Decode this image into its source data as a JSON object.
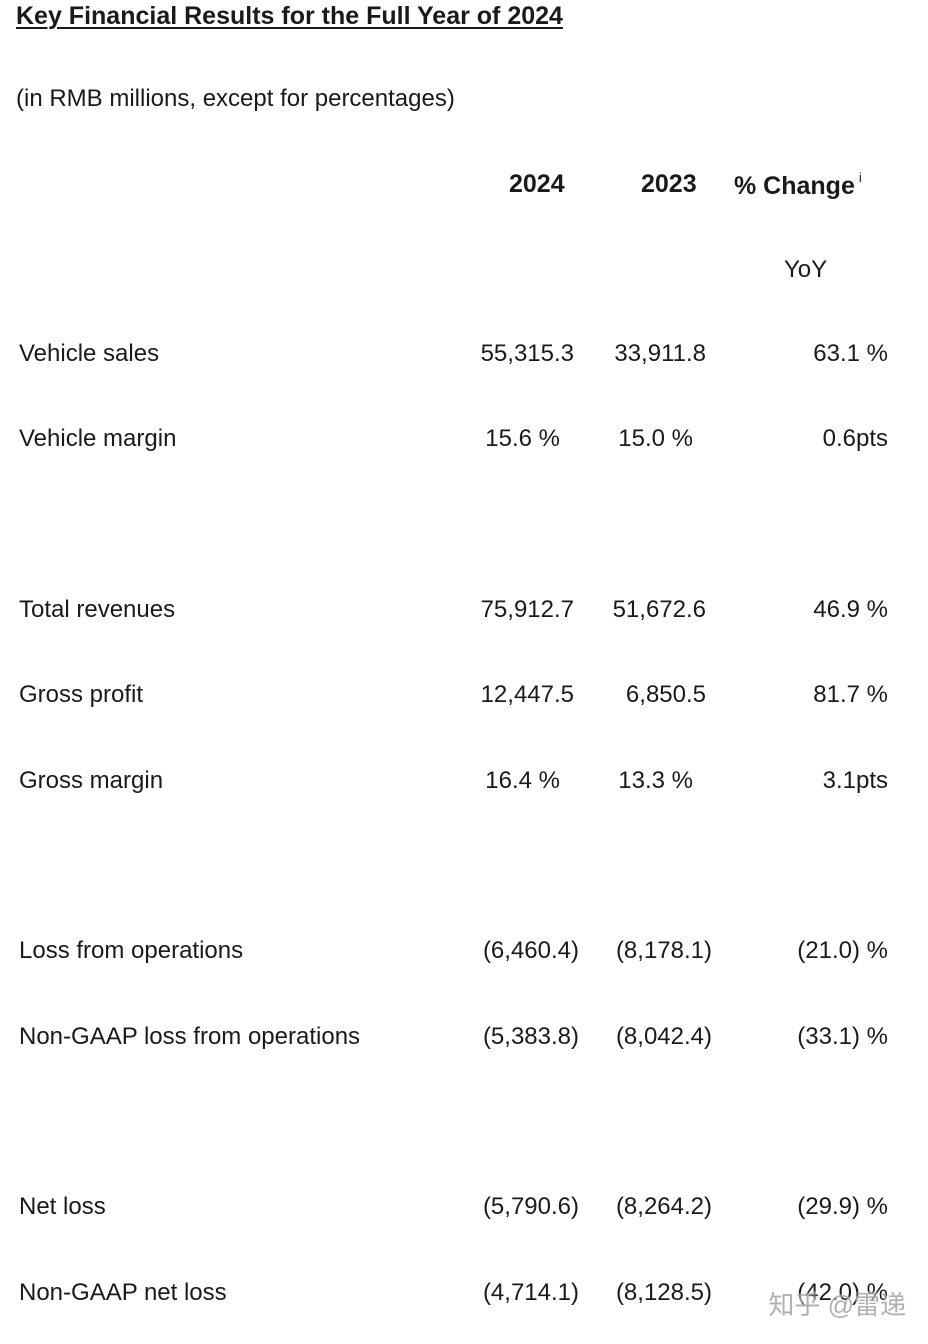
{
  "title": "Key Financial Results for the Full Year of 2024",
  "subtitle": "(in RMB millions, except for percentages)",
  "headers": {
    "col_2024": "2024",
    "col_2023": "2023",
    "col_change": "% Change",
    "change_note": "i",
    "change_sub": "YoY"
  },
  "rows": [
    {
      "label": "Vehicle sales",
      "v2024": "55,315.3",
      "v2023": "33,911.8",
      "change": "63.1 %"
    },
    {
      "label": "Vehicle margin",
      "v2024": "15.6 %",
      "v2023": "15.0 %",
      "change": "0.6pts"
    },
    {
      "label": "Total revenues",
      "v2024": "75,912.7",
      "v2023": "51,672.6",
      "change": "46.9 %"
    },
    {
      "label": "Gross profit",
      "v2024": "12,447.5",
      "v2023": "6,850.5",
      "change": "81.7 %"
    },
    {
      "label": "Gross margin",
      "v2024": "16.4 %",
      "v2023": "13.3 %",
      "change": "3.1pts"
    },
    {
      "label": "Loss from operations",
      "v2024": "(6,460.4)",
      "v2023": "(8,178.1)",
      "change": "(21.0) %"
    },
    {
      "label": "Non-GAAP loss from operations",
      "v2024": "(5,383.8)",
      "v2023": "(8,042.4)",
      "change": "(33.1) %"
    },
    {
      "label": "Net loss",
      "v2024": "(5,790.6)",
      "v2023": "(8,264.2)",
      "change": "(29.9) %"
    },
    {
      "label": "Non-GAAP net loss",
      "v2024": "(4,714.1)",
      "v2023": "(8,128.5)",
      "change": "(42.0) %"
    }
  ],
  "watermark": "知乎 @雷递"
}
